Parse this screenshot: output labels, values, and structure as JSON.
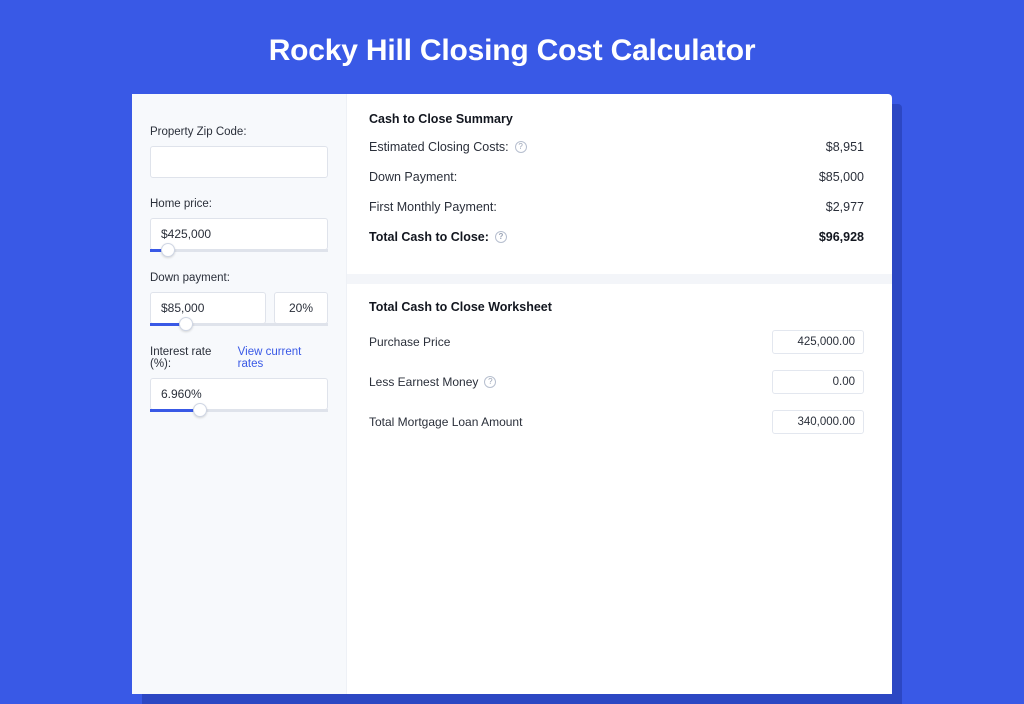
{
  "colors": {
    "page_bg": "#3959e6",
    "shadow": "#2c47c3",
    "panel_bg": "#ffffff",
    "left_bg": "#f7f9fc",
    "border": "#dfe3eb",
    "text": "#2a2f3a",
    "text_strong": "#12161f",
    "accent": "#3959e6",
    "muted": "#9aa3b5"
  },
  "page": {
    "title": "Rocky Hill Closing Cost Calculator"
  },
  "inputs": {
    "zip_label": "Property Zip Code:",
    "zip_value": "",
    "home_price_label": "Home price:",
    "home_price_value": "$425,000",
    "home_price_slider_pct": 10,
    "down_payment_label": "Down payment:",
    "down_payment_value": "$85,000",
    "down_payment_pct": "20%",
    "down_payment_slider_pct": 20,
    "interest_label": "Interest rate (%):",
    "interest_link": "View current rates",
    "interest_value": "6.960%",
    "interest_slider_pct": 28
  },
  "summary": {
    "heading": "Cash to Close Summary",
    "rows": [
      {
        "label": "Estimated Closing Costs:",
        "help": true,
        "value": "$8,951"
      },
      {
        "label": "Down Payment:",
        "help": false,
        "value": "$85,000"
      },
      {
        "label": "First Monthly Payment:",
        "help": false,
        "value": "$2,977"
      }
    ],
    "total_label": "Total Cash to Close:",
    "total_help": true,
    "total_value": "$96,928"
  },
  "worksheet": {
    "heading": "Total Cash to Close Worksheet",
    "rows": [
      {
        "label": "Purchase Price",
        "help": false,
        "value": "425,000.00"
      },
      {
        "label": "Less Earnest Money",
        "help": true,
        "value": "0.00"
      },
      {
        "label": "Total Mortgage Loan Amount",
        "help": false,
        "value": "340,000.00"
      }
    ]
  }
}
